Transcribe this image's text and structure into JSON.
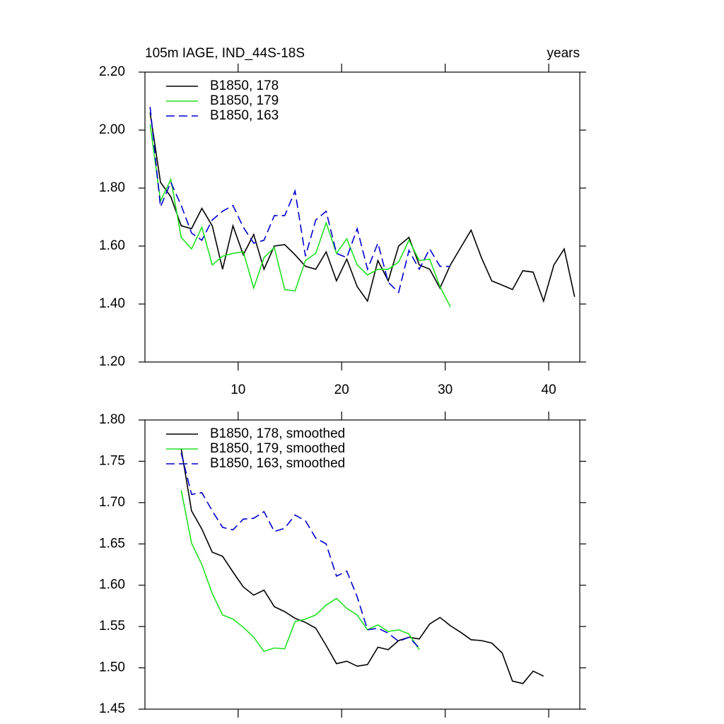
{
  "chart_data": [
    {
      "type": "line",
      "title": "105m IAGE, IND_44S-18S",
      "title_right": "years",
      "xlim": [
        1,
        43
      ],
      "xticks": [
        10,
        20,
        30,
        40
      ],
      "ylim": [
        1.2,
        2.2
      ],
      "yticks": [
        {
          "value": 1.2,
          "label": "1.20"
        },
        {
          "value": 1.4,
          "label": "1.40"
        },
        {
          "value": 1.6,
          "label": "1.60"
        },
        {
          "value": 1.8,
          "label": "1.80"
        },
        {
          "value": 2.0,
          "label": "2.00"
        },
        {
          "value": 2.2,
          "label": "2.20"
        }
      ],
      "series": [
        {
          "name": "B1850, 178",
          "color": "#000000",
          "dashed": false,
          "x": [
            1.5,
            2.5,
            3.5,
            4.5,
            5.5,
            6.5,
            7.5,
            8.5,
            9.5,
            10.5,
            11.5,
            12.5,
            13.5,
            14.5,
            15.5,
            16.5,
            17.5,
            18.5,
            19.5,
            20.5,
            21.5,
            22.5,
            23.5,
            24.5,
            25.5,
            26.5,
            27.5,
            28.5,
            29.5,
            30.5,
            31.5,
            32.5,
            33.5,
            34.5,
            35.5,
            36.5,
            37.5,
            38.5,
            39.5,
            40.5,
            41.5,
            42.5
          ],
          "values": [
            2.06,
            1.82,
            1.77,
            1.67,
            1.66,
            1.73,
            1.67,
            1.52,
            1.67,
            1.57,
            1.64,
            1.52,
            1.6,
            1.605,
            1.57,
            1.53,
            1.52,
            1.58,
            1.48,
            1.555,
            1.46,
            1.41,
            1.55,
            1.48,
            1.6,
            1.63,
            1.535,
            1.52,
            1.455,
            1.535,
            1.595,
            1.655,
            1.56,
            1.48,
            1.465,
            1.45,
            1.515,
            1.51,
            1.41,
            1.535,
            1.59,
            1.425
          ]
        },
        {
          "name": "B1850, 179",
          "color": "#22e022",
          "dashed": false,
          "x": [
            1.5,
            2.5,
            3.5,
            4.5,
            5.5,
            6.5,
            7.5,
            8.5,
            9.5,
            10.5,
            11.5,
            12.5,
            13.5,
            14.5,
            15.5,
            16.5,
            17.5,
            18.5,
            19.5,
            20.5,
            21.5,
            22.5,
            23.5,
            24.5,
            25.5,
            26.5,
            27.5,
            28.5,
            29.5,
            30.5
          ],
          "values": [
            2.02,
            1.755,
            1.83,
            1.63,
            1.59,
            1.665,
            1.535,
            1.565,
            1.575,
            1.58,
            1.455,
            1.56,
            1.595,
            1.45,
            1.445,
            1.55,
            1.575,
            1.68,
            1.575,
            1.625,
            1.535,
            1.5,
            1.52,
            1.52,
            1.545,
            1.62,
            1.55,
            1.555,
            1.46,
            1.39
          ]
        },
        {
          "name": "B1850, 163",
          "color": "#0000cc",
          "dashed": true,
          "x": [
            1.5,
            2.5,
            3.5,
            4.5,
            5.5,
            6.5,
            7.5,
            8.5,
            9.5,
            10.5,
            11.5,
            12.5,
            13.5,
            14.5,
            15.5,
            16.5,
            17.5,
            18.5,
            19.5,
            20.5,
            21.5,
            22.5,
            23.5,
            24.5,
            25.5,
            26.5,
            27.5,
            28.5,
            29.5,
            30.5
          ],
          "values": [
            2.08,
            1.735,
            1.82,
            1.74,
            1.645,
            1.62,
            1.69,
            1.72,
            1.74,
            1.665,
            1.61,
            1.62,
            1.705,
            1.705,
            1.79,
            1.565,
            1.69,
            1.72,
            1.575,
            1.56,
            1.66,
            1.52,
            1.61,
            1.475,
            1.44,
            1.585,
            1.52,
            1.59,
            1.53,
            1.53
          ]
        }
      ]
    },
    {
      "type": "line",
      "xlim": [
        1,
        43
      ],
      "xticks": [
        10,
        20,
        30,
        40
      ],
      "ylim": [
        1.45,
        1.8
      ],
      "yticks": [
        {
          "value": 1.45,
          "label": "1.45"
        },
        {
          "value": 1.5,
          "label": "1.50"
        },
        {
          "value": 1.55,
          "label": "1.55"
        },
        {
          "value": 1.6,
          "label": "1.60"
        },
        {
          "value": 1.65,
          "label": "1.65"
        },
        {
          "value": 1.7,
          "label": "1.70"
        },
        {
          "value": 1.75,
          "label": "1.75"
        },
        {
          "value": 1.8,
          "label": "1.80"
        }
      ],
      "series": [
        {
          "name": "B1850, 178, smoothed",
          "color": "#000000",
          "dashed": false,
          "x": [
            4.5,
            5.5,
            6.5,
            7.5,
            8.5,
            9.5,
            10.5,
            11.5,
            12.5,
            13.5,
            14.5,
            15.5,
            16.5,
            17.5,
            18.5,
            19.5,
            20.5,
            21.5,
            22.5,
            23.5,
            24.5,
            25.5,
            26.5,
            27.5,
            28.5,
            29.5,
            30.5,
            31.5,
            32.5,
            33.5,
            34.5,
            35.5,
            36.5,
            37.5,
            38.5,
            39.5
          ],
          "values": [
            1.765,
            1.69,
            1.668,
            1.64,
            1.635,
            1.616,
            1.598,
            1.588,
            1.594,
            1.574,
            1.568,
            1.56,
            1.555,
            1.548,
            1.527,
            1.505,
            1.508,
            1.502,
            1.504,
            1.525,
            1.522,
            1.533,
            1.537,
            1.535,
            1.553,
            1.561,
            1.551,
            1.543,
            1.534,
            1.533,
            1.53,
            1.518,
            1.484,
            1.481,
            1.496,
            1.49
          ]
        },
        {
          "name": "B1850, 179, smoothed",
          "color": "#22e022",
          "dashed": false,
          "x": [
            4.5,
            5.5,
            6.5,
            7.5,
            8.5,
            9.5,
            10.5,
            11.5,
            12.5,
            13.5,
            14.5,
            15.5,
            16.5,
            17.5,
            18.5,
            19.5,
            20.5,
            21.5,
            22.5,
            23.5,
            24.5,
            25.5,
            26.5,
            27.5
          ],
          "values": [
            1.715,
            1.651,
            1.625,
            1.59,
            1.564,
            1.559,
            1.549,
            1.537,
            1.52,
            1.524,
            1.523,
            1.556,
            1.559,
            1.564,
            1.576,
            1.584,
            1.572,
            1.564,
            1.546,
            1.552,
            1.544,
            1.546,
            1.541,
            1.522
          ]
        },
        {
          "name": "B1850, 163, smoothed",
          "color": "#0000cc",
          "dashed": true,
          "x": [
            4.5,
            5.5,
            6.5,
            7.5,
            8.5,
            9.5,
            10.5,
            11.5,
            12.5,
            13.5,
            14.5,
            15.5,
            16.5,
            17.5,
            18.5,
            19.5,
            20.5,
            21.5,
            22.5,
            23.5,
            24.5,
            25.5,
            26.5,
            27.5
          ],
          "values": [
            1.76,
            1.71,
            1.712,
            1.69,
            1.67,
            1.667,
            1.68,
            1.681,
            1.689,
            1.665,
            1.669,
            1.685,
            1.678,
            1.657,
            1.65,
            1.611,
            1.617,
            1.586,
            1.546,
            1.548,
            1.542,
            1.532,
            1.537,
            1.524
          ]
        }
      ]
    }
  ]
}
